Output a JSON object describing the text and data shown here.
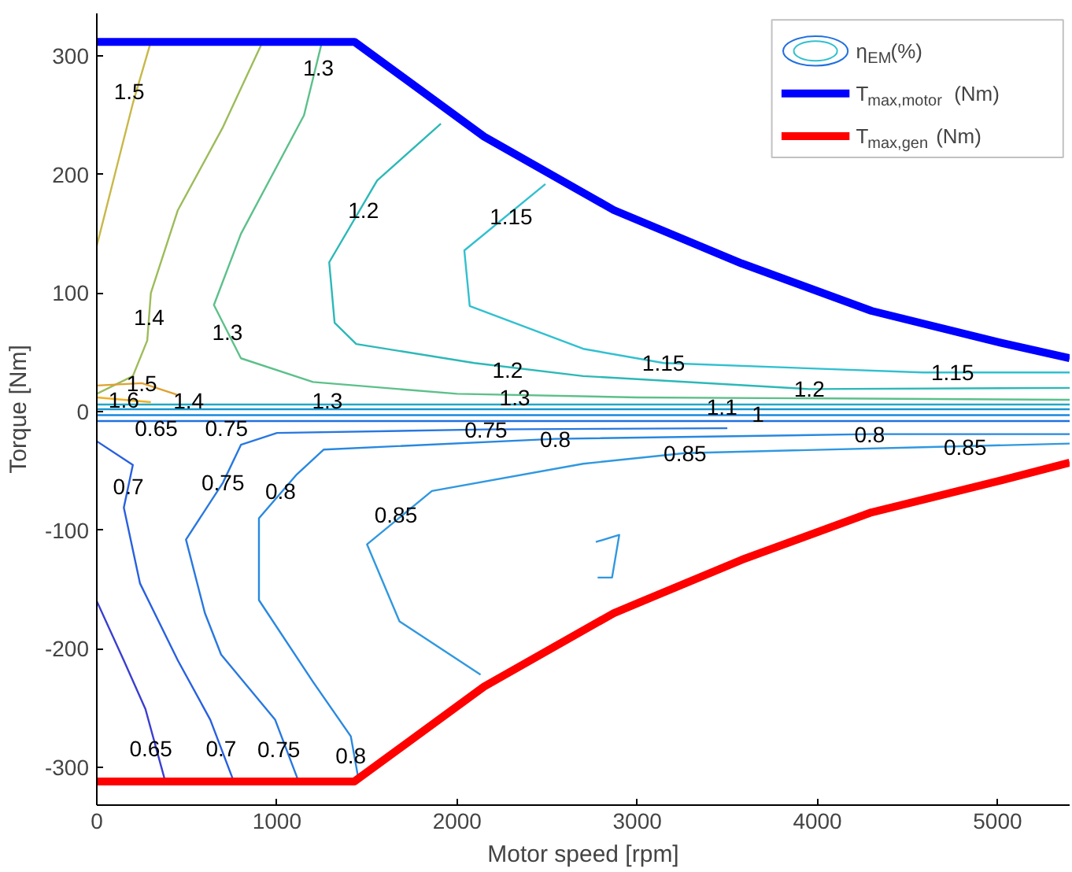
{
  "chart_data": {
    "type": "line",
    "xlabel": "Motor speed [rpm]",
    "ylabel": "Torque [Nm]",
    "legend_title": "η$_{EM}$(%)",
    "xlim": [
      0,
      5400
    ],
    "ylim": [
      -332,
      336
    ],
    "xticks": [
      0,
      1000,
      2000,
      3000,
      4000,
      5000
    ],
    "yticks": [
      -300,
      -200,
      -100,
      0,
      100,
      200,
      300
    ],
    "grid": false,
    "legend": "top right",
    "series": [
      {
        "color": "#c8b848",
        "x": [
          300,
          200,
          100,
          0
        ],
        "values": [
          312,
          260,
          200,
          140
        ]
      },
      {
        "color": "#9cbc5a",
        "x": [
          920,
          700,
          450,
          300,
          280,
          200,
          0
        ],
        "values": [
          312,
          240,
          170,
          100,
          60,
          30,
          15
        ]
      },
      {
        "color": "#5cc08a",
        "x": [
          1250,
          1150,
          800,
          650,
          800,
          1200,
          2000,
          3000,
          5400
        ],
        "values": [
          312,
          250,
          150,
          90,
          45,
          25,
          15,
          12,
          10
        ]
      },
      {
        "color": "#2cb8b8",
        "x": [
          1910,
          1556,
          1290,
          1320,
          1440,
          2095,
          2700,
          3955,
          5400
        ],
        "values": [
          243,
          195,
          126,
          75,
          57,
          41,
          30,
          19,
          20
        ]
      },
      {
        "color": "#30c0d0",
        "x": [
          2490,
          2040,
          2070,
          2700,
          3146,
          4584,
          5400
        ],
        "values": [
          192,
          136,
          89,
          53,
          41,
          33,
          33
        ]
      },
      {
        "color": "#20a8c8",
        "x": [
          0,
          5400
        ],
        "values": [
          6,
          6
        ]
      },
      {
        "color": "#1898d0",
        "x": [
          0,
          5400
        ],
        "values": [
          2,
          2
        ]
      },
      {
        "color": "#1888e0",
        "x": [
          0,
          5400
        ],
        "values": [
          -3,
          -3
        ]
      },
      {
        "color": "#2070e0",
        "x": [
          0,
          5400
        ],
        "values": [
          -8,
          -8
        ]
      },
      {
        "color": "#3a3ed0",
        "x": [
          0,
          150,
          270,
          380
        ],
        "values": [
          -160,
          -210,
          -251,
          -312
        ]
      },
      {
        "color": "#2860e0",
        "x": [
          0,
          200,
          150,
          240,
          450,
          630,
          760
        ],
        "values": [
          -25,
          -45,
          -81,
          -145,
          -210,
          -260,
          -312
        ]
      },
      {
        "color": "#2878e0",
        "x": [
          3500,
          2160,
          1000,
          800,
          700,
          495,
          600,
          690,
          990,
          1120
        ],
        "values": [
          -14,
          -15,
          -18,
          -28,
          -60,
          -108,
          -170,
          -205,
          -260,
          -312
        ]
      },
      {
        "color": "#2888e0",
        "x": [
          5400,
          4290,
          2545,
          1260,
          1110,
          900,
          900,
          1200,
          1410,
          1450
        ],
        "values": [
          -19,
          -19,
          -23,
          -32,
          -53,
          -90,
          -159,
          -228,
          -274,
          -308
        ]
      },
      {
        "color": "#3098e0",
        "x": [
          5400,
          4584,
          3265,
          2700,
          1860,
          1500,
          1680,
          2130
        ],
        "values": [
          -27,
          -30,
          -35,
          -44,
          -67,
          -112,
          -177,
          -222
        ]
      },
      {
        "color": "#3098e0",
        "x": [
          2770,
          2900,
          2860,
          2780
        ],
        "values": [
          -110,
          -104,
          -140,
          -140
        ]
      },
      {
        "color": "#e0a030",
        "x": [
          0,
          250,
          450
        ],
        "values": [
          22,
          24,
          14
        ]
      },
      {
        "color": "#f0b020",
        "x": [
          0,
          150,
          300
        ],
        "values": [
          12,
          10,
          8
        ]
      },
      {
        "name": "T$_{max,motor}$ (Nm)",
        "color": "#0000ff",
        "x": [
          0,
          1430,
          2150,
          2870,
          3580,
          4300,
          5020,
          5400
        ],
        "values": [
          312,
          312,
          232,
          170,
          125,
          85,
          58,
          45
        ]
      },
      {
        "name": "T$_{max,gen}$(Nm)",
        "color": "#ff0000",
        "x": [
          0,
          1430,
          2150,
          2870,
          3580,
          4300,
          5020,
          5400
        ],
        "values": [
          -312,
          -312,
          -232,
          -170,
          -125,
          -85,
          -58,
          -43
        ]
      }
    ],
    "annotations": [
      {
        "text": "1.5",
        "x": 180,
        "y": 270
      },
      {
        "text": "1.3",
        "x": 1230,
        "y": 290
      },
      {
        "text": "1.2",
        "x": 1480,
        "y": 170
      },
      {
        "text": "1.15",
        "x": 2300,
        "y": 165
      },
      {
        "text": "1.4",
        "x": 290,
        "y": 80
      },
      {
        "text": "1.3",
        "x": 725,
        "y": 67
      },
      {
        "text": "1.2",
        "x": 2280,
        "y": 35
      },
      {
        "text": "1.15",
        "x": 3146,
        "y": 41
      },
      {
        "text": "1.15",
        "x": 4750,
        "y": 33
      },
      {
        "text": "1.2",
        "x": 3955,
        "y": 19
      },
      {
        "text": "1.5",
        "x": 250,
        "y": 24
      },
      {
        "text": "1.6",
        "x": 150,
        "y": 10
      },
      {
        "text": "1.4",
        "x": 510,
        "y": 9
      },
      {
        "text": "1.3",
        "x": 1280,
        "y": 9
      },
      {
        "text": "1.3",
        "x": 2320,
        "y": 12
      },
      {
        "text": "1.1",
        "x": 3470,
        "y": 4
      },
      {
        "text": "1",
        "x": 3670,
        "y": -2
      },
      {
        "text": "0.65",
        "x": 330,
        "y": -14
      },
      {
        "text": "0.75",
        "x": 720,
        "y": -14
      },
      {
        "text": "0.75",
        "x": 2160,
        "y": -15
      },
      {
        "text": "0.8",
        "x": 2545,
        "y": -23
      },
      {
        "text": "0.8",
        "x": 4290,
        "y": -19
      },
      {
        "text": "0.85",
        "x": 3265,
        "y": -35
      },
      {
        "text": "0.85",
        "x": 4820,
        "y": -30
      },
      {
        "text": "0.7",
        "x": 175,
        "y": -63
      },
      {
        "text": "0.75",
        "x": 700,
        "y": -60
      },
      {
        "text": "0.8",
        "x": 1020,
        "y": -67
      },
      {
        "text": "0.85",
        "x": 1660,
        "y": -87
      },
      {
        "text": "0.65",
        "x": 300,
        "y": -284
      },
      {
        "text": "0.7",
        "x": 690,
        "y": -284
      },
      {
        "text": "0.75",
        "x": 1010,
        "y": -285
      },
      {
        "text": "0.8",
        "x": 1410,
        "y": -290
      }
    ]
  }
}
